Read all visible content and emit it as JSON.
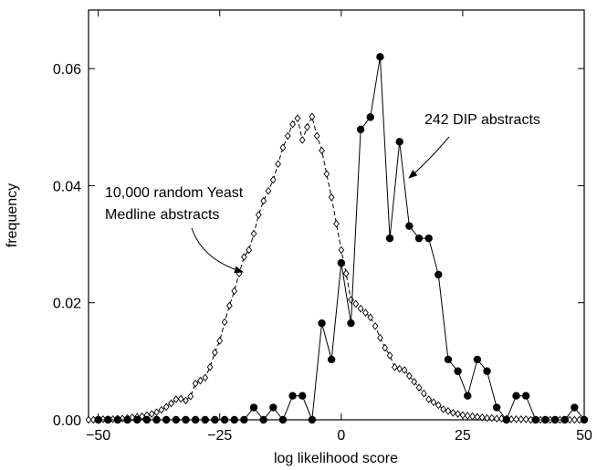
{
  "chart_data": {
    "type": "line",
    "title": "",
    "xlabel": "log likelihood score",
    "ylabel": "frequency",
    "xlim": [
      -52,
      50
    ],
    "ylim": [
      0,
      0.07
    ],
    "x_ticks": [
      -50,
      -25,
      0,
      25,
      50
    ],
    "x_tick_labels": [
      "−50",
      "−25",
      "0",
      "25",
      "50"
    ],
    "y_ticks": [
      0,
      0.02,
      0.04,
      0.06
    ],
    "y_tick_labels": [
      "0.00",
      "0.02",
      "0.04",
      "0.06"
    ],
    "grid": false,
    "series": [
      {
        "name": "10,000 random Yeast Medline abstracts",
        "marker": "open-diamond",
        "line_style": "dashed",
        "x": [
          -52,
          -51,
          -50,
          -49,
          -48,
          -47,
          -46,
          -45,
          -44,
          -43,
          -42,
          -41,
          -40,
          -39,
          -38,
          -37,
          -36,
          -35,
          -34,
          -33,
          -32,
          -31,
          -30,
          -29,
          -28,
          -27,
          -26,
          -25,
          -24,
          -23,
          -22,
          -21,
          -20,
          -19,
          -18,
          -17,
          -16,
          -15,
          -14,
          -13,
          -12,
          -11,
          -10,
          -9,
          -8,
          -7,
          -6,
          -5,
          -4,
          -3,
          -2,
          -1,
          0,
          1,
          2,
          3,
          4,
          5,
          6,
          7,
          8,
          9,
          10,
          11,
          12,
          13,
          14,
          15,
          16,
          17,
          18,
          19,
          20,
          21,
          22,
          23,
          24,
          25,
          26,
          27,
          28,
          29,
          30,
          31,
          32,
          33,
          34,
          35,
          36,
          37,
          38,
          39,
          40,
          41,
          42,
          43,
          44,
          45,
          46,
          47,
          48,
          49,
          50
        ],
        "y": [
          0,
          0,
          0.0001,
          0.0001,
          0.0001,
          0.0001,
          0.0002,
          0.0002,
          0.0003,
          0.0004,
          0.0005,
          0.0006,
          0.0008,
          0.001,
          0.0013,
          0.0017,
          0.0022,
          0.0028,
          0.0035,
          0.0036,
          0.0033,
          0.004,
          0.0062,
          0.0067,
          0.0072,
          0.009,
          0.0115,
          0.0135,
          0.0167,
          0.0195,
          0.022,
          0.025,
          0.0278,
          0.029,
          0.0318,
          0.035,
          0.0374,
          0.0391,
          0.041,
          0.0437,
          0.0465,
          0.0485,
          0.0505,
          0.0515,
          0.0478,
          0.05,
          0.0518,
          0.0485,
          0.046,
          0.042,
          0.038,
          0.0335,
          0.029,
          0.025,
          0.0205,
          0.0198,
          0.019,
          0.0183,
          0.0175,
          0.016,
          0.014,
          0.0123,
          0.011,
          0.009,
          0.0087,
          0.0085,
          0.0075,
          0.0065,
          0.0055,
          0.0045,
          0.0035,
          0.003,
          0.0025,
          0.0018,
          0.0015,
          0.0012,
          0.001,
          0.0008,
          0.0007,
          0.0006,
          0.0005,
          0.0004,
          0.0003,
          0.0003,
          0.0002,
          0.0002,
          0.0002,
          0.0001,
          0.0001,
          0.0001,
          0.0001,
          0,
          0,
          0,
          0,
          0,
          0,
          0,
          0,
          0,
          0,
          0,
          0
        ]
      },
      {
        "name": "242 DIP abstracts",
        "marker": "filled-circle",
        "line_style": "solid",
        "x": [
          -50,
          -48,
          -46,
          -44,
          -42,
          -40,
          -38,
          -36,
          -34,
          -32,
          -30,
          -28,
          -26,
          -24,
          -22,
          -20,
          -18,
          -16,
          -14,
          -12,
          -10,
          -8,
          -6,
          -4,
          -2,
          0,
          2,
          4,
          6,
          8,
          10,
          12,
          14,
          16,
          18,
          20,
          22,
          24,
          26,
          28,
          30,
          32,
          34,
          36,
          38,
          40,
          42,
          44,
          46,
          48,
          50
        ],
        "y": [
          0,
          0,
          0,
          0,
          0,
          0,
          0,
          0,
          0,
          0,
          0,
          0,
          0,
          0,
          0,
          0,
          0.0021,
          0,
          0.0021,
          0,
          0.0041,
          0.0041,
          0,
          0.0165,
          0.0103,
          0.0268,
          0.0165,
          0.0496,
          0.0517,
          0.062,
          0.031,
          0.0475,
          0.0331,
          0.031,
          0.031,
          0.0248,
          0.0103,
          0.0083,
          0.0041,
          0.0103,
          0.0083,
          0.0021,
          0,
          0.0041,
          0.0041,
          0,
          0,
          0,
          0,
          0.0021,
          0
        ]
      }
    ],
    "annotations": [
      {
        "lines": [
          "10,000 random Yeast",
          "Medline abstracts"
        ],
        "points_to": "10,000 random Yeast Medline abstracts"
      },
      {
        "lines": [
          "242 DIP abstracts"
        ],
        "points_to": "242 DIP abstracts"
      }
    ]
  }
}
